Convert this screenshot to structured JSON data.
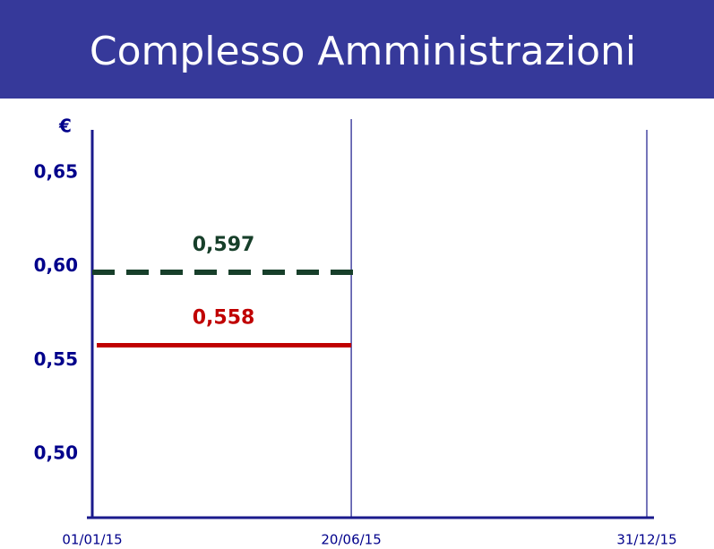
{
  "chart_data": {
    "type": "line",
    "title": "Complesso Amministrazioni",
    "y_label": "€",
    "ylim": [
      0.466,
      0.673
    ],
    "yticks": [
      {
        "value": 0.65,
        "label": "0,65"
      },
      {
        "value": 0.6,
        "label": "0,60"
      },
      {
        "value": 0.55,
        "label": "0,55"
      },
      {
        "value": 0.5,
        "label": "0,50"
      }
    ],
    "xlim": [
      "01/01/15",
      "31/12/15"
    ],
    "xticks": [
      "01/01/15",
      "20/06/15",
      "31/12/15"
    ],
    "grid": true,
    "series": [
      {
        "x": [
          "01/01/15",
          "20/06/15"
        ],
        "value": 0.597,
        "label": "0,597",
        "color": "#173f2a",
        "dash": true
      },
      {
        "x": [
          "01/01/15",
          "20/06/15"
        ],
        "value": 0.558,
        "label": "0,558",
        "color": "#c00000",
        "dash": false
      }
    ]
  }
}
